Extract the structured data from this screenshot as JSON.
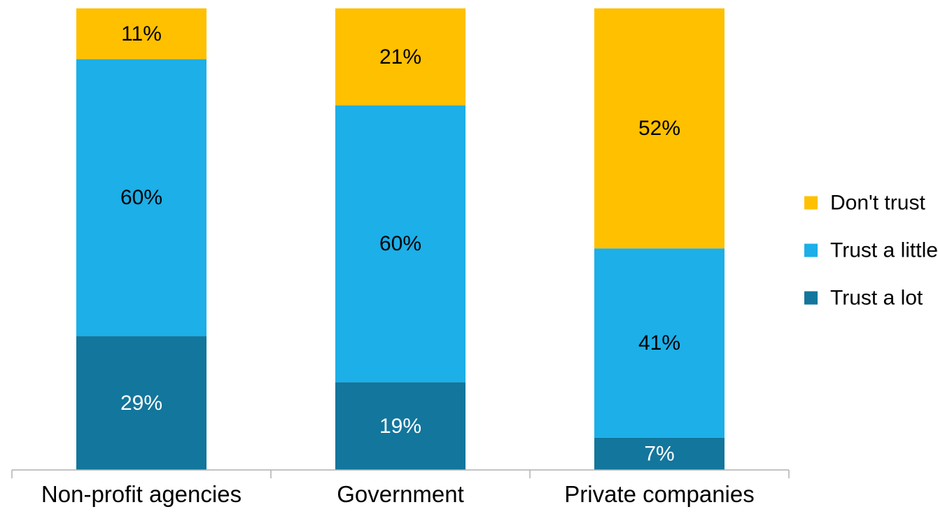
{
  "chart_data": {
    "type": "bar",
    "stacked": true,
    "percent": true,
    "categories": [
      "Non-profit agencies",
      "Government",
      "Private companies"
    ],
    "series": [
      {
        "name": "Trust a lot",
        "values": [
          29,
          19,
          7
        ],
        "labels": [
          "29%",
          "19%",
          "7%"
        ],
        "color": "#13769C",
        "label_color": "#ffffff"
      },
      {
        "name": "Trust a little",
        "values": [
          60,
          60,
          41
        ],
        "labels": [
          "60%",
          "60%",
          "41%"
        ],
        "color": "#1CAFE8",
        "label_color": "#000000"
      },
      {
        "name": "Don't trust",
        "values": [
          11,
          21,
          52
        ],
        "labels": [
          "11%",
          "21%",
          "52%"
        ],
        "color": "#FFC000",
        "label_color": "#000000"
      }
    ],
    "ylim": [
      0,
      100
    ],
    "grid": false,
    "legend": {
      "position": "right",
      "order": [
        "Don't trust",
        "Trust a little",
        "Trust a lot"
      ]
    },
    "title": "",
    "xlabel": "",
    "ylabel": ""
  }
}
